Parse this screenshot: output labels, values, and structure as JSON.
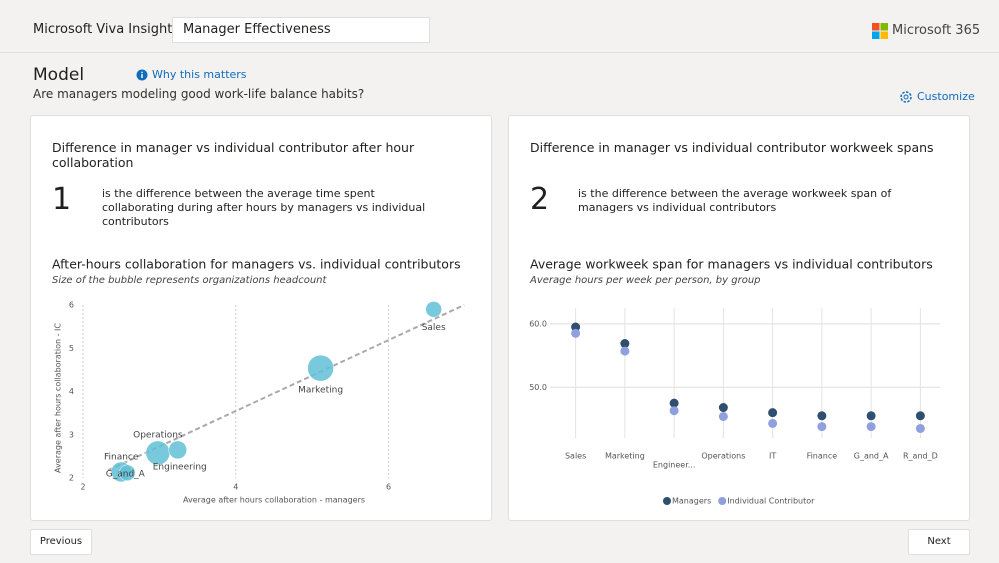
{
  "header": {
    "app": "Microsoft Viva Insights",
    "search": "Manager Effectiveness",
    "brand": "Microsoft 365"
  },
  "section": {
    "title": "Model",
    "link": "Why this matters",
    "question": "Are managers modeling good work-life balance habits?",
    "action": "Customize"
  },
  "cards": [
    {
      "title": "Difference in manager vs individual contributor after hour collaboration",
      "number": 1,
      "description": "is the difference between the average time spent collaborating during after hours by managers vs individual contributors"
    },
    {
      "title": "Difference in manager vs individual contributor workweek spans",
      "number": 2,
      "description": "is the difference between the average workweek span of managers vs individual contributors"
    }
  ],
  "chart_data": [
    {
      "type": "bubble",
      "title": "After-hours collaboration for managers vs. individual contributors",
      "subtitle": "Size of the bubble represents organizations headcount",
      "x_label": "Average after hours collaboration - managers",
      "y_label": "Average after hours collaboration - IC",
      "categories": [
        "Sales",
        "Marketing",
        "Operations",
        "Engineering",
        "Finance",
        "G_and_A"
      ],
      "x": [
        6.59,
        5.11,
        2.98,
        3.24,
        2.5,
        2.58
      ],
      "values": [
        5.9,
        4.54,
        2.58,
        2.65,
        2.14,
        2.12
      ],
      "sizes": [
        64,
        170,
        144,
        81,
        100,
        64
      ],
      "color": "#62bfd6",
      "trendline": {
        "x": [
          2.33,
          6.99
        ],
        "y": [
          2.18,
          6
        ]
      },
      "xlim": [
        2,
        7
      ],
      "ylim": [
        2,
        6
      ],
      "xticks": [
        2,
        4,
        6
      ],
      "yticks": [
        2,
        3,
        4,
        5,
        6
      ],
      "grid": "x"
    },
    {
      "type": "dot",
      "title": "Average workweek span for managers vs individual contributors",
      "subtitle": "Average hours per week per person, by group",
      "categories": [
        "Sales",
        "Marketing",
        "Engineer...",
        "Operations",
        "IT",
        "Finance",
        "G_and_A",
        "R_and_D"
      ],
      "series": [
        {
          "name": "Managers",
          "color": "#2f4f6e",
          "values": [
            59.5,
            56.9,
            47.5,
            46.8,
            46.0,
            45.5,
            45.5,
            45.5
          ]
        },
        {
          "name": "Individual Contributor",
          "color": "#8f9fe0",
          "values": [
            58.5,
            55.7,
            46.3,
            45.4,
            44.3,
            43.8,
            43.8,
            43.5
          ]
        }
      ],
      "ylim": [
        42,
        62.5
      ],
      "yticks": [
        {
          "value": 50,
          "label": "50.0"
        },
        {
          "value": 60,
          "label": "60.0"
        }
      ],
      "grid": "y",
      "legend": "bottom"
    }
  ],
  "buttons": {
    "previous": "Previous",
    "next": "Next"
  }
}
